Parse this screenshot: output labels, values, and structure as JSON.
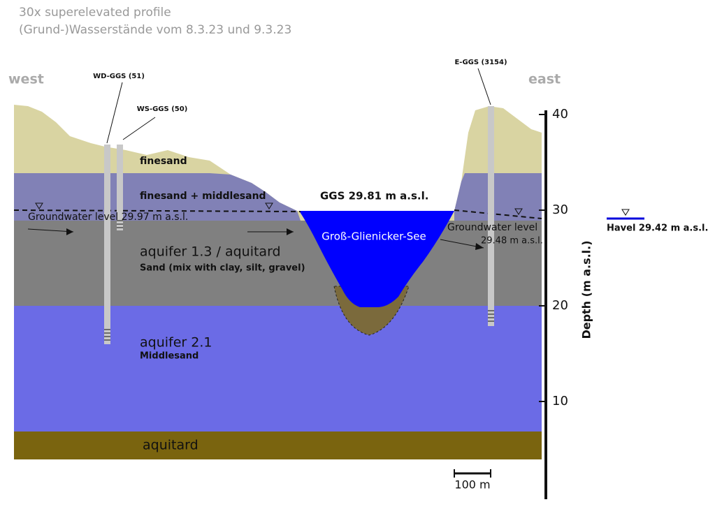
{
  "header": {
    "title": "30x superelevated profile",
    "subtitle": "(Grund-)Wasserstände vom 8.3.23 und 9.3.23"
  },
  "directions": {
    "west": "west",
    "east": "east"
  },
  "wells": [
    "WD-GGS (51)",
    "WS-GGS (50)",
    "E-GGS (3154)"
  ],
  "layers": {
    "finesand": "finesand",
    "finesand_middlesand": "finesand  + middlesand",
    "aquifer_13": "aquifer 1.3 / aquitard",
    "aquifer_13_note": "Sand (mix with clay, silt, gravel)",
    "aquifer_21": "aquifer 2.1",
    "aquifer_21_note": "Middlesand",
    "aquitard": "aquitard"
  },
  "levels": {
    "lake": "GGS 29.81 m a.s.l.",
    "lake_name": "Groß-Glienicker-See",
    "west": "Groundwater level 29.97 m a.s.l.",
    "east_line1": "Groundwater level",
    "east_line2": "29.48 m a.s.l.",
    "havel": "Havel 29.42 m a.s.l."
  },
  "axis": {
    "label": "Depth (m a.s.l.)",
    "ticks": [
      10,
      20,
      30,
      40
    ]
  },
  "scale_bar": "100 m"
}
